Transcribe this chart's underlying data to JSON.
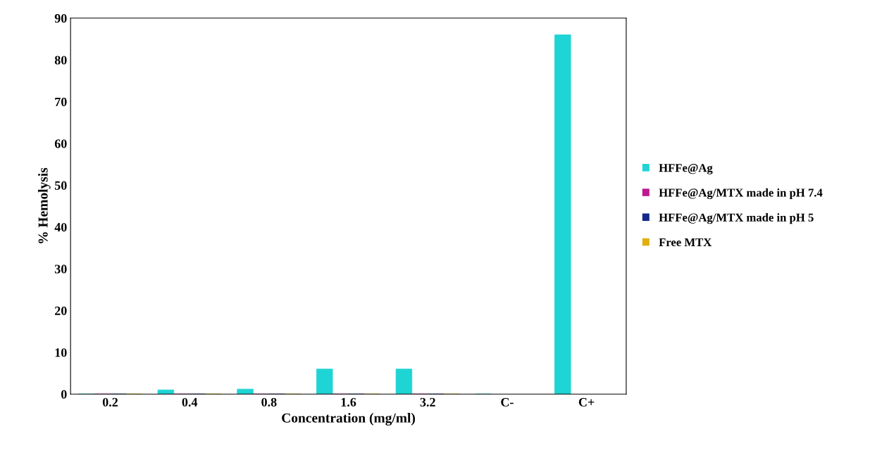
{
  "chart_data": {
    "type": "bar",
    "xlabel": "Concentration (mg/ml)",
    "ylabel": "% Hemolysis",
    "categories": [
      "0.2",
      "0.4",
      "0.8",
      "1.6",
      "3.2",
      "C-",
      "C+"
    ],
    "series": [
      {
        "name": "HFFe@Ag",
        "color": "#1fd4d4",
        "values": [
          0,
          1,
          1.2,
          6,
          6,
          0,
          86
        ]
      },
      {
        "name": "HFFe@Ag/MTX made in pH 7.4",
        "color": "#c0168f",
        "values": [
          0,
          0,
          0,
          0,
          0,
          null,
          null
        ]
      },
      {
        "name": "HFFe@Ag/MTX made in pH 5",
        "color": "#13288a",
        "values": [
          0,
          0,
          0,
          0,
          0,
          null,
          null
        ]
      },
      {
        "name": "Free MTX",
        "color": "#e0b010",
        "values": [
          0,
          0,
          0,
          0,
          0,
          null,
          null
        ]
      }
    ],
    "ylim": [
      0,
      90
    ],
    "yticks": [
      0,
      10,
      20,
      30,
      40,
      50,
      60,
      70,
      80,
      90
    ],
    "grid": false,
    "legend": "right"
  }
}
